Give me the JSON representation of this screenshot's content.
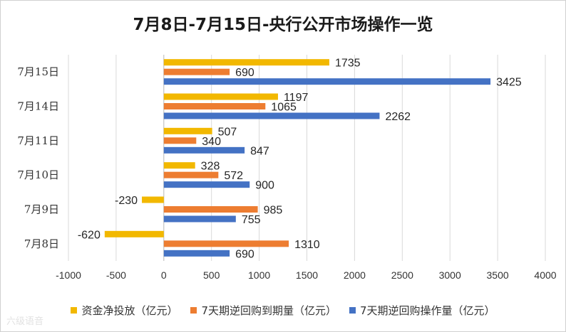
{
  "chart_data": {
    "type": "bar",
    "orientation": "horizontal",
    "title": "7月8日-7月15日-央行公开市场操作一览",
    "categories": [
      "7月15日",
      "7月14日",
      "7月11日",
      "7月10日",
      "7月9日",
      "7月8日"
    ],
    "series": [
      {
        "name": "资金净投放（亿元）",
        "color": "#f2b800",
        "values": [
          1735,
          1197,
          507,
          328,
          -230,
          -620
        ]
      },
      {
        "name": "7天期逆回购到期量（亿元）",
        "color": "#ed7d31",
        "values": [
          690,
          1065,
          340,
          572,
          985,
          1310
        ]
      },
      {
        "name": "7天期逆回购操作量（亿元）",
        "color": "#4472c4",
        "values": [
          3425,
          2262,
          847,
          900,
          755,
          690
        ]
      }
    ],
    "xlim": [
      -1000,
      4000
    ],
    "xticks": [
      -1000,
      -500,
      0,
      500,
      1000,
      1500,
      2000,
      2500,
      3000,
      3500,
      4000
    ],
    "grid": true,
    "legend_position": "bottom"
  },
  "watermark": "六级语音"
}
